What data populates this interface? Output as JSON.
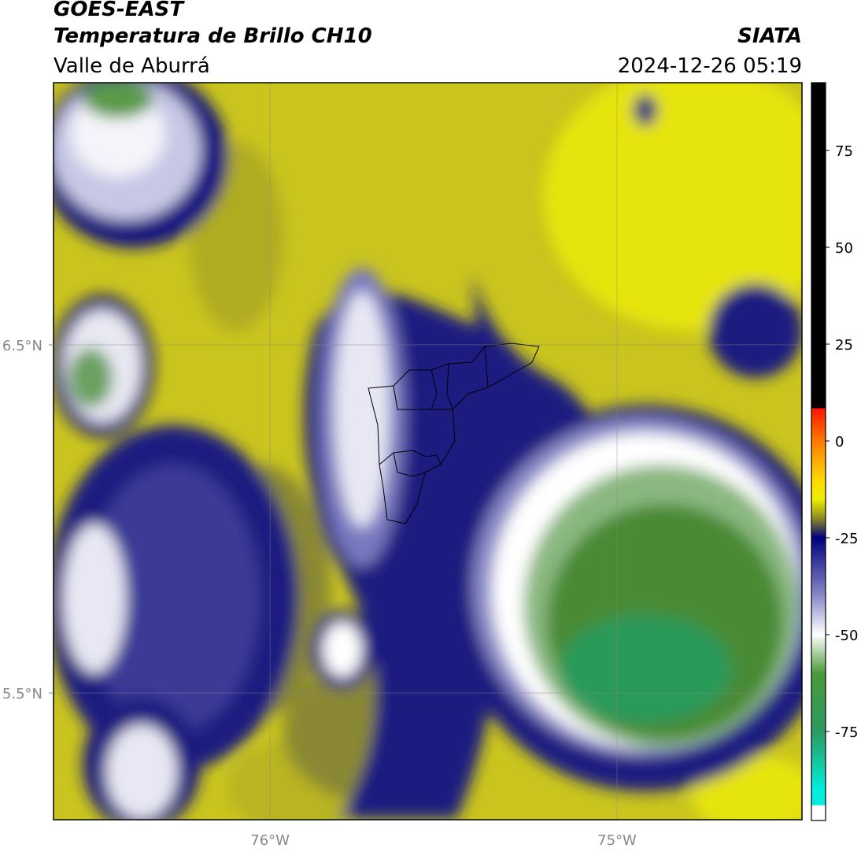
{
  "map": {
    "title": "GOES-EAST",
    "subtitle": "Temperatura de Brillo CH10",
    "region": "Valle de Aburrá",
    "source": "SIATA",
    "datetime": "2024-12-26 05:19",
    "xlim": [
      -76.624,
      -74.467
    ],
    "ylim": [
      5.136,
      7.253
    ],
    "xticks": [
      {
        "value": -76,
        "label": "76°W"
      },
      {
        "value": -75,
        "label": "75°W"
      }
    ],
    "yticks": [
      {
        "value": 6.5,
        "label": "6.5°N"
      },
      {
        "value": 5.5,
        "label": "5.5°N"
      }
    ],
    "grid": true,
    "colorbar": {
      "lim": [
        -98,
        92.5
      ],
      "ticks": [
        75,
        50,
        25,
        0,
        -25,
        -50,
        -75
      ],
      "stops": [
        {
          "value": 92.5,
          "color": "#000000"
        },
        {
          "value": 8.5,
          "color": "#000000"
        },
        {
          "value": 8.4,
          "color": "#ff1500"
        },
        {
          "value": 0,
          "color": "#ff7a00"
        },
        {
          "value": -10,
          "color": "#ffd800"
        },
        {
          "value": -15,
          "color": "#eeee00"
        },
        {
          "value": -20,
          "color": "#8a8a22"
        },
        {
          "value": -25,
          "color": "#000080"
        },
        {
          "value": -40,
          "color": "#8a8ac8"
        },
        {
          "value": -50,
          "color": "#ffffff"
        },
        {
          "value": -60,
          "color": "#4a9a3a"
        },
        {
          "value": -75,
          "color": "#2a9a60"
        },
        {
          "value": -90,
          "color": "#00eedd"
        },
        {
          "value": -94,
          "color": "#00eedd"
        },
        {
          "value": -94.1,
          "color": "#ffffff"
        },
        {
          "value": -98,
          "color": "#ffffff"
        }
      ]
    }
  }
}
